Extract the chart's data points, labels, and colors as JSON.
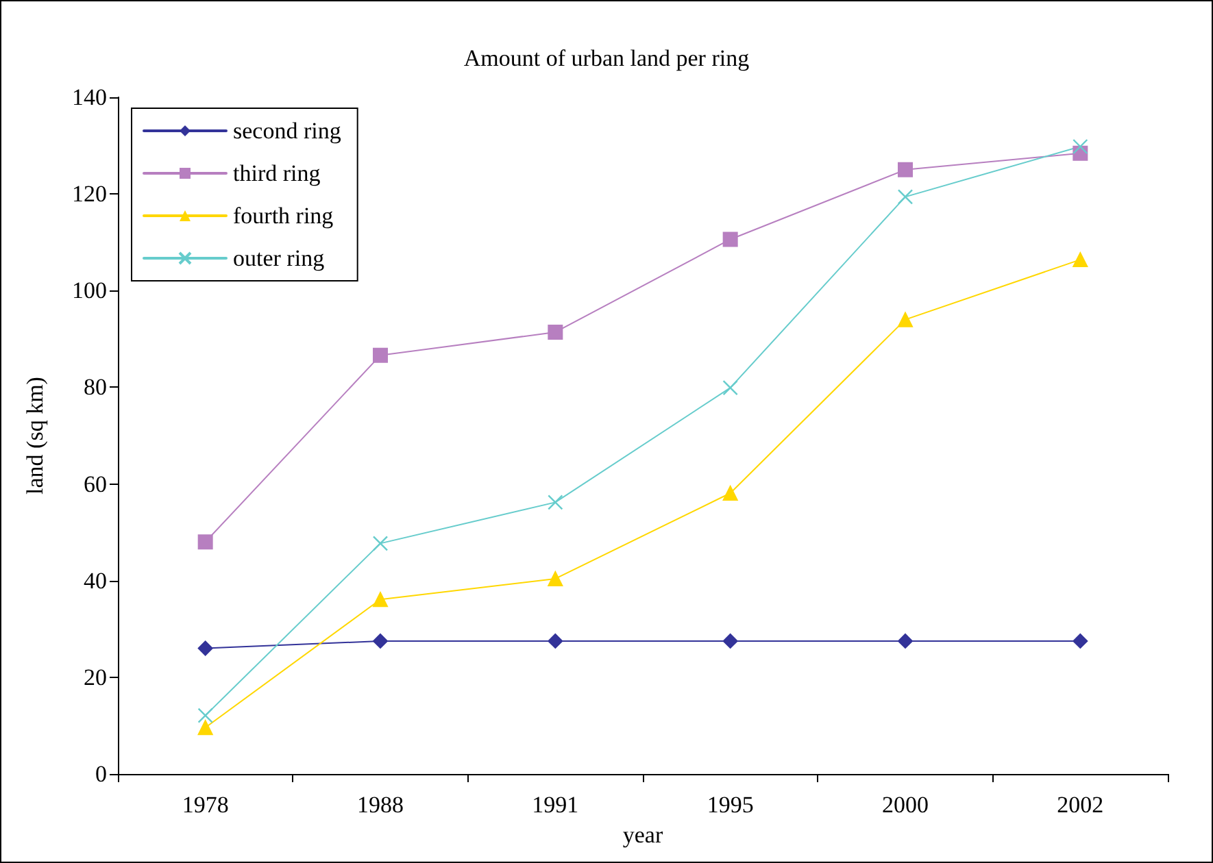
{
  "chart_data": {
    "type": "line",
    "title": "Amount of urban land per ring",
    "xlabel": "year",
    "ylabel": "land (sq km)",
    "categories": [
      "1978",
      "1988",
      "1991",
      "1995",
      "2000",
      "2002"
    ],
    "series": [
      {
        "name": "second ring",
        "color": "#333399",
        "marker": "diamond",
        "values": [
          26,
          27.5,
          27.5,
          27.5,
          27.5,
          27.5
        ]
      },
      {
        "name": "third ring",
        "color": "#b77fc0",
        "marker": "square",
        "values": [
          48,
          86.6,
          91.4,
          110.6,
          125,
          128.4
        ]
      },
      {
        "name": "fourth ring",
        "color": "#ffd700",
        "marker": "triangle",
        "values": [
          9.6,
          36.1,
          40.4,
          58.1,
          94,
          106.4
        ]
      },
      {
        "name": "outer ring",
        "color": "#66cccc",
        "marker": "cross",
        "values": [
          12.1,
          47.7,
          56.2,
          79.9,
          119.4,
          129.8
        ]
      }
    ],
    "ylim": [
      0,
      140
    ],
    "yticks": [
      0,
      20,
      40,
      60,
      80,
      100,
      120,
      140
    ],
    "grid": false,
    "legend": "top left",
    "line_style": "solid"
  }
}
